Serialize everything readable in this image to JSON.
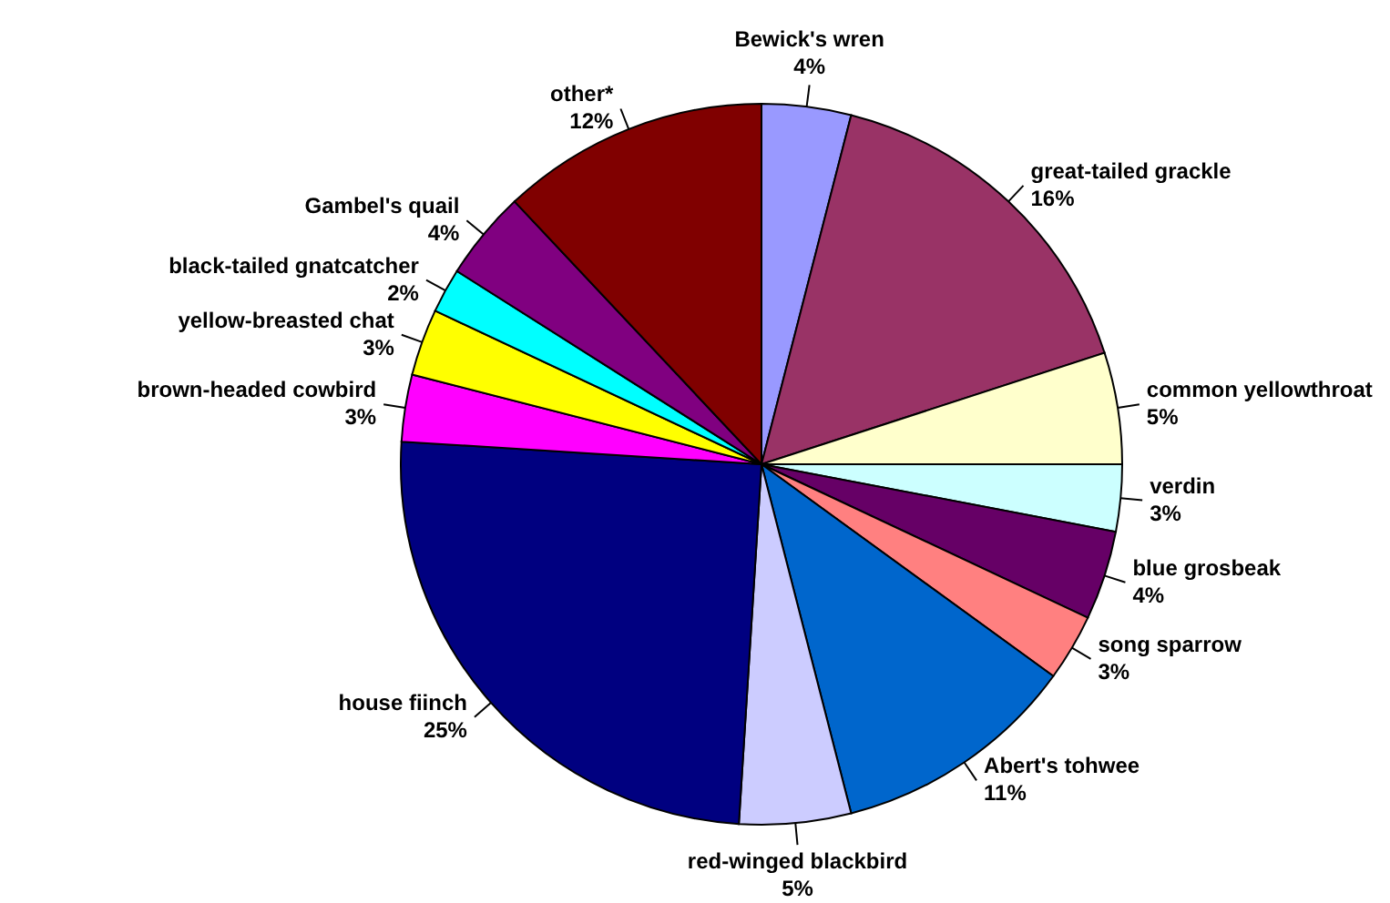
{
  "chart_data": {
    "type": "pie",
    "categories": [
      "Bewick's wren",
      "great-tailed grackle",
      "common yellowthroat",
      "verdin",
      "blue grosbeak",
      "song sparrow",
      "Abert's tohwee",
      "red-winged blackbird",
      "house fiinch",
      "brown-headed cowbird",
      "yellow-breasted chat",
      "black-tailed gnatcatcher",
      "Gambel's quail",
      "other*"
    ],
    "values": [
      4,
      16,
      5,
      3,
      4,
      3,
      11,
      5,
      25,
      3,
      3,
      2,
      4,
      12
    ],
    "value_labels": [
      "4%",
      "16%",
      "5%",
      "3%",
      "4%",
      "3%",
      "11%",
      "5%",
      "25%",
      "3%",
      "3%",
      "2%",
      "4%",
      "12%"
    ],
    "colors": [
      "#9999ff",
      "#993366",
      "#ffffcc",
      "#ccffff",
      "#660066",
      "#ff8080",
      "#0066cc",
      "#ccccff",
      "#000080",
      "#ff00ff",
      "#ffff00",
      "#00ffff",
      "#800080",
      "#800000"
    ]
  }
}
